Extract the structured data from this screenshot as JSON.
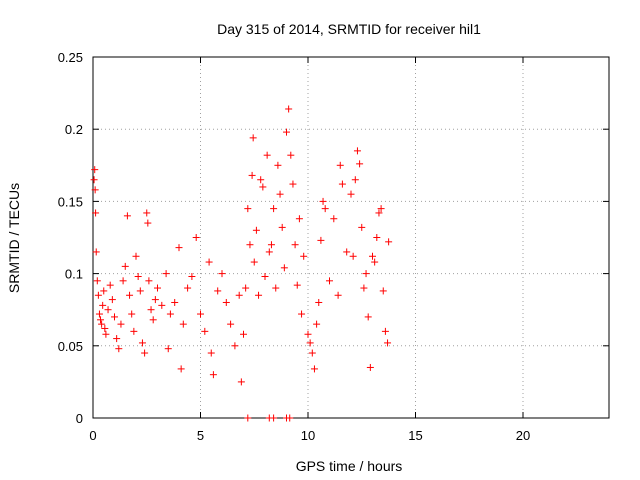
{
  "chart_data": {
    "type": "scatter",
    "title": "Day 315 of 2014, SRMTID for receiver hil1",
    "xlabel": "GPS time / hours",
    "ylabel": "SRMTID / TECUs",
    "xlim": [
      0,
      24
    ],
    "ylim": [
      0,
      0.25
    ],
    "x_ticks": [
      "0",
      "5",
      "10",
      "15",
      "20"
    ],
    "y_ticks": [
      "0",
      "0.05",
      "0.1",
      "0.15",
      "0.2",
      "0.25"
    ],
    "grid": true,
    "marker": "+",
    "color": "#ff0000",
    "series": [
      {
        "points": [
          [
            0.05,
            0.165
          ],
          [
            0.08,
            0.172
          ],
          [
            0.1,
            0.158
          ],
          [
            0.12,
            0.142
          ],
          [
            0.15,
            0.115
          ],
          [
            0.2,
            0.095
          ],
          [
            0.25,
            0.085
          ],
          [
            0.3,
            0.072
          ],
          [
            0.35,
            0.068
          ],
          [
            0.4,
            0.065
          ],
          [
            0.45,
            0.078
          ],
          [
            0.5,
            0.088
          ],
          [
            0.55,
            0.062
          ],
          [
            0.6,
            0.058
          ],
          [
            0.7,
            0.075
          ],
          [
            0.8,
            0.092
          ],
          [
            0.9,
            0.082
          ],
          [
            1.0,
            0.07
          ],
          [
            1.1,
            0.055
          ],
          [
            1.2,
            0.048
          ],
          [
            1.3,
            0.065
          ],
          [
            1.4,
            0.095
          ],
          [
            1.5,
            0.105
          ],
          [
            1.6,
            0.14
          ],
          [
            1.7,
            0.085
          ],
          [
            1.8,
            0.072
          ],
          [
            1.9,
            0.06
          ],
          [
            2.0,
            0.112
          ],
          [
            2.1,
            0.098
          ],
          [
            2.2,
            0.088
          ],
          [
            2.3,
            0.052
          ],
          [
            2.4,
            0.045
          ],
          [
            2.5,
            0.142
          ],
          [
            2.55,
            0.135
          ],
          [
            2.6,
            0.095
          ],
          [
            2.7,
            0.075
          ],
          [
            2.8,
            0.068
          ],
          [
            2.9,
            0.082
          ],
          [
            3.0,
            0.09
          ],
          [
            3.2,
            0.078
          ],
          [
            3.4,
            0.1
          ],
          [
            3.5,
            0.048
          ],
          [
            3.6,
            0.072
          ],
          [
            3.8,
            0.08
          ],
          [
            4.0,
            0.118
          ],
          [
            4.1,
            0.034
          ],
          [
            4.2,
            0.065
          ],
          [
            4.4,
            0.09
          ],
          [
            4.6,
            0.098
          ],
          [
            4.8,
            0.125
          ],
          [
            5.0,
            0.072
          ],
          [
            5.2,
            0.06
          ],
          [
            5.4,
            0.108
          ],
          [
            5.5,
            0.045
          ],
          [
            5.6,
            0.03
          ],
          [
            5.8,
            0.088
          ],
          [
            6.0,
            0.1
          ],
          [
            6.2,
            0.08
          ],
          [
            6.4,
            0.065
          ],
          [
            6.6,
            0.05
          ],
          [
            6.8,
            0.085
          ],
          [
            6.9,
            0.025
          ],
          [
            7.0,
            0.058
          ],
          [
            7.1,
            0.09
          ],
          [
            7.2,
            0.145
          ],
          [
            7.3,
            0.12
          ],
          [
            7.4,
            0.168
          ],
          [
            7.45,
            0.194
          ],
          [
            7.5,
            0.108
          ],
          [
            7.6,
            0.13
          ],
          [
            7.7,
            0.085
          ],
          [
            7.8,
            0.165
          ],
          [
            7.9,
            0.16
          ],
          [
            8.0,
            0.098
          ],
          [
            8.1,
            0.182
          ],
          [
            8.2,
            0.115
          ],
          [
            8.3,
            0.12
          ],
          [
            8.4,
            0.145
          ],
          [
            8.5,
            0.09
          ],
          [
            8.6,
            0.175
          ],
          [
            8.7,
            0.155
          ],
          [
            8.8,
            0.132
          ],
          [
            8.9,
            0.104
          ],
          [
            9.0,
            0.198
          ],
          [
            9.1,
            0.214
          ],
          [
            9.2,
            0.182
          ],
          [
            9.3,
            0.162
          ],
          [
            9.4,
            0.12
          ],
          [
            9.5,
            0.092
          ],
          [
            9.6,
            0.138
          ],
          [
            9.7,
            0.072
          ],
          [
            9.8,
            0.112
          ],
          [
            10.0,
            0.058
          ],
          [
            10.1,
            0.052
          ],
          [
            10.2,
            0.045
          ],
          [
            10.3,
            0.034
          ],
          [
            10.4,
            0.065
          ],
          [
            10.5,
            0.08
          ],
          [
            10.6,
            0.123
          ],
          [
            10.7,
            0.15
          ],
          [
            10.8,
            0.145
          ],
          [
            11.0,
            0.095
          ],
          [
            11.2,
            0.138
          ],
          [
            11.4,
            0.085
          ],
          [
            11.5,
            0.175
          ],
          [
            11.6,
            0.162
          ],
          [
            11.8,
            0.115
          ],
          [
            12.0,
            0.155
          ],
          [
            12.1,
            0.112
          ],
          [
            12.2,
            0.165
          ],
          [
            12.3,
            0.185
          ],
          [
            12.4,
            0.176
          ],
          [
            12.5,
            0.132
          ],
          [
            12.6,
            0.09
          ],
          [
            12.7,
            0.1
          ],
          [
            12.8,
            0.07
          ],
          [
            12.9,
            0.035
          ],
          [
            13.0,
            0.112
          ],
          [
            13.1,
            0.108
          ],
          [
            13.2,
            0.125
          ],
          [
            13.3,
            0.142
          ],
          [
            13.4,
            0.145
          ],
          [
            13.5,
            0.088
          ],
          [
            13.6,
            0.06
          ],
          [
            13.7,
            0.052
          ],
          [
            13.75,
            0.122
          ],
          [
            7.2,
            0.0
          ],
          [
            8.2,
            0.0
          ],
          [
            8.4,
            0.0
          ],
          [
            9.0,
            0.0
          ],
          [
            9.15,
            0.0
          ]
        ]
      }
    ]
  }
}
